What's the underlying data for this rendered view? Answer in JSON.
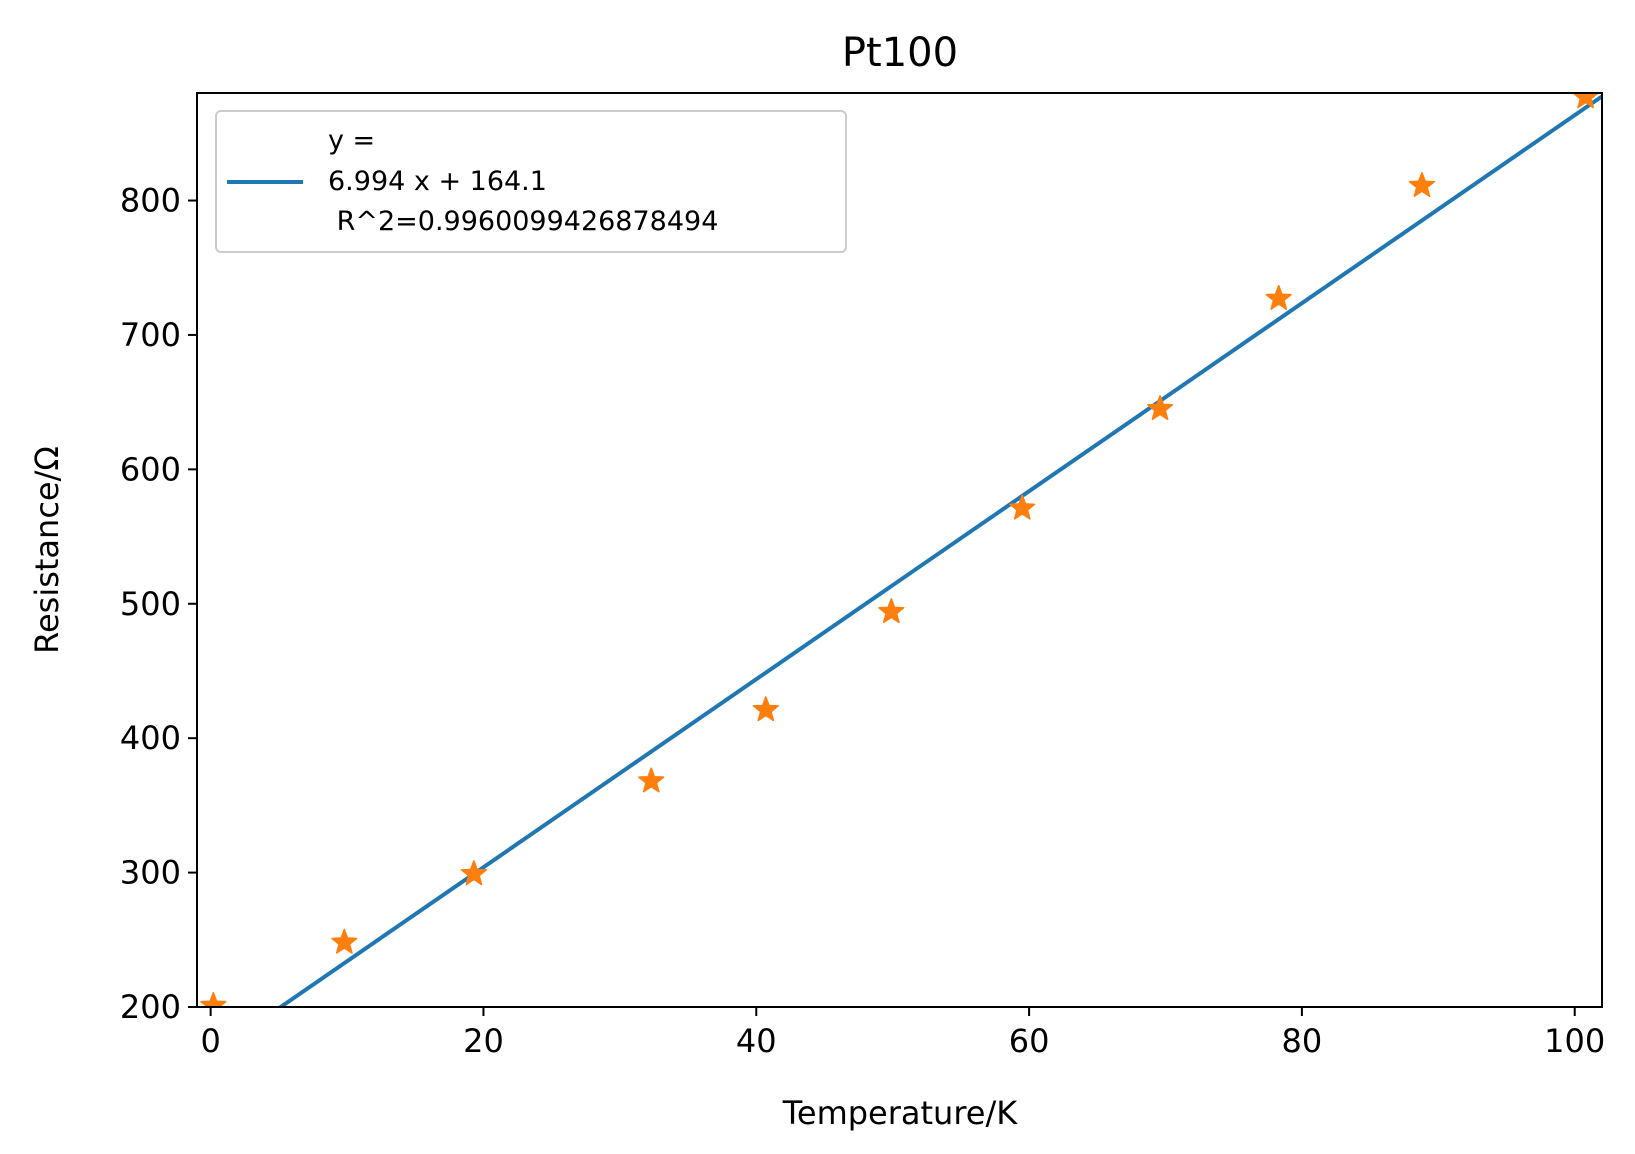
{
  "chart_data": {
    "type": "scatter",
    "title": "Pt100",
    "xlabel": "Temperature/K",
    "ylabel": "Resistance/Ω",
    "xlim": [
      -1,
      102
    ],
    "ylim": [
      200,
      880
    ],
    "xticks": [
      0,
      20,
      40,
      60,
      80,
      100
    ],
    "yticks": [
      200,
      300,
      400,
      500,
      600,
      700,
      800
    ],
    "x_tick_labels": [
      "0",
      "20",
      "40",
      "60",
      "80",
      "100"
    ],
    "y_tick_labels": [
      "200",
      "300",
      "400",
      "500",
      "600",
      "700",
      "800"
    ],
    "grid": false,
    "legend_position": "upper-left",
    "fit_line": {
      "legend_lines": [
        "y =",
        "6.994 x + 164.1",
        " R^2=0.9960099426878494"
      ],
      "slope": 6.994,
      "intercept": 164.1,
      "color": "#1f77b4"
    },
    "points": {
      "marker": "star",
      "color": "#ff7f0e",
      "x": [
        0.2,
        9.8,
        19.3,
        32.3,
        40.7,
        49.9,
        59.5,
        69.6,
        78.3,
        88.8,
        100.8
      ],
      "y": [
        201,
        248,
        299,
        368,
        421,
        494,
        571,
        645,
        727,
        811,
        877
      ]
    }
  }
}
